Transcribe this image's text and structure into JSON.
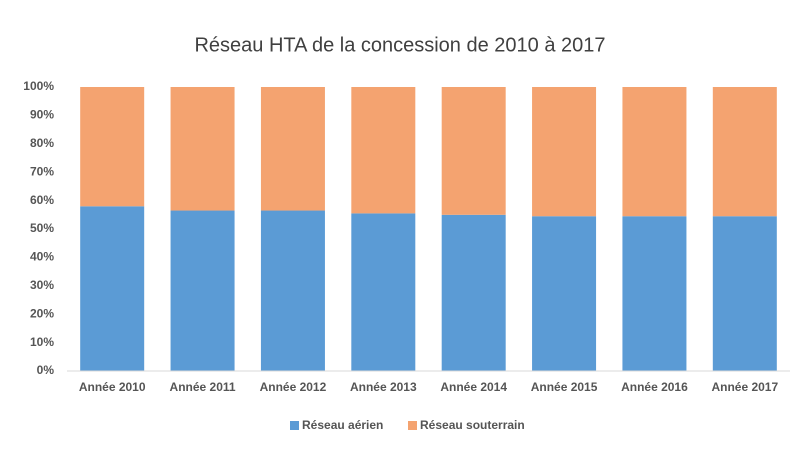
{
  "chart_data": {
    "type": "stacked_bar_100",
    "title": "Réseau HTA de la concession de 2010 à 2017",
    "categories": [
      "Année 2010",
      "Année 2011",
      "Année 2012",
      "Année 2013",
      "Année 2014",
      "Année 2015",
      "Année 2016",
      "Année 2017"
    ],
    "series": [
      {
        "name": "Réseau aérien",
        "color": "#5b9bd5",
        "values": [
          58,
          56.5,
          56.5,
          55.5,
          55,
          54.5,
          54.5,
          54.5
        ]
      },
      {
        "name": "Réseau souterrain",
        "color": "#f4a370",
        "values": [
          42,
          43.5,
          43.5,
          44.5,
          45,
          45.5,
          45.5,
          45.5
        ]
      }
    ],
    "ylim": [
      0,
      100
    ],
    "yticks": [
      {
        "value": 0,
        "label": "0%"
      },
      {
        "value": 10,
        "label": "10%"
      },
      {
        "value": 20,
        "label": "20%"
      },
      {
        "value": 30,
        "label": "30%"
      },
      {
        "value": 40,
        "label": "40%"
      },
      {
        "value": 50,
        "label": "50%"
      },
      {
        "value": 60,
        "label": "60%"
      },
      {
        "value": 70,
        "label": "70%"
      },
      {
        "value": 80,
        "label": "80%"
      },
      {
        "value": 90,
        "label": "90%"
      },
      {
        "value": 100,
        "label": "100%"
      }
    ],
    "grid": false,
    "legend": "bottom"
  }
}
